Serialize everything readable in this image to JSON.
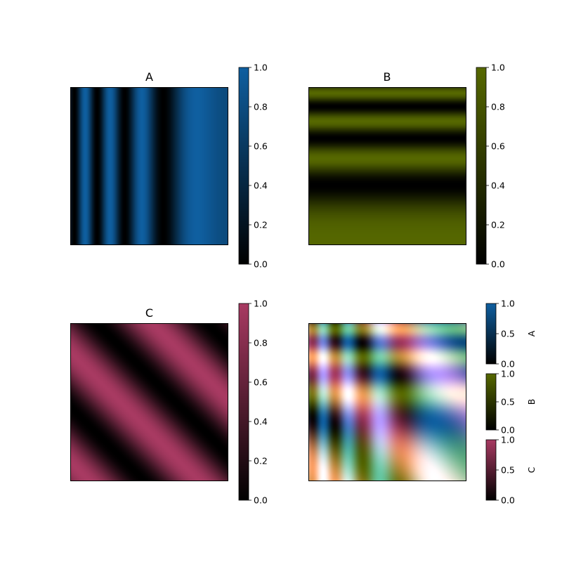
{
  "chart_data": [
    {
      "type": "heatmap",
      "title": "A",
      "pattern": "vertical stripes, sin(x^2) profile, period shrinking toward left",
      "color_low": "#000000",
      "color_high": "#0f5fa0",
      "clim": [
        0,
        1
      ],
      "colorbar": {
        "ticks": [
          "0.0",
          "0.2",
          "0.4",
          "0.6",
          "0.8",
          "1.0"
        ],
        "label": ""
      }
    },
    {
      "type": "heatmap",
      "title": "B",
      "pattern": "horizontal stripes, cos(y^2) profile, period shrinking toward top",
      "color_low": "#000000",
      "color_high": "#566800",
      "clim": [
        0,
        1
      ],
      "colorbar": {
        "ticks": [
          "0.0",
          "0.2",
          "0.4",
          "0.6",
          "0.8",
          "1.0"
        ],
        "label": ""
      }
    },
    {
      "type": "heatmap",
      "title": "C",
      "pattern": "diagonal stripes, sin(x + y) profile",
      "color_low": "#000000",
      "color_high": "#a83a62",
      "clim": [
        0,
        1
      ],
      "colorbar": {
        "ticks": [
          "0.0",
          "0.2",
          "0.4",
          "0.6",
          "0.8",
          "1.0"
        ],
        "label": ""
      }
    },
    {
      "type": "heatmap",
      "title": "",
      "pattern": "additive blend of A, B and C",
      "colorbars": [
        {
          "label": "A",
          "color_high": "#0f5fa0",
          "ticks": [
            "0.0",
            "0.5",
            "1.0"
          ]
        },
        {
          "label": "B",
          "color_high": "#566800",
          "ticks": [
            "0.0",
            "0.5",
            "1.0"
          ]
        },
        {
          "label": "C",
          "color_high": "#a83a62",
          "ticks": [
            "0.0",
            "0.5",
            "1.0"
          ]
        }
      ]
    }
  ]
}
